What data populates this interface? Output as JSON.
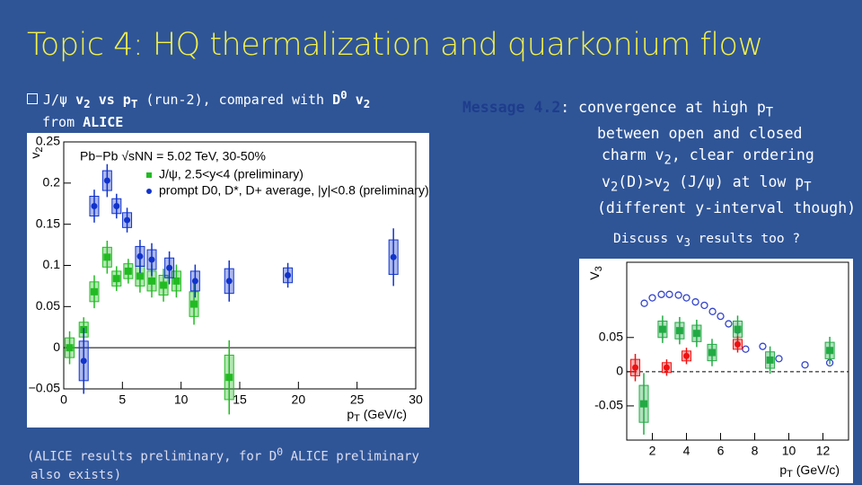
{
  "slide": {
    "title": "Topic 4: HQ thermalization and quarkonium flow",
    "bullet": [
      "J/ψ ",
      "v",
      "2",
      " vs p",
      "T",
      " (run-2), compared with ",
      "D",
      "0",
      " v",
      "2",
      "from ",
      "ALICE"
    ],
    "message": [
      "Message 4.2",
      ": convergence at high p",
      "T",
      "between open and closed",
      "charm v",
      "2",
      ", clear ordering",
      "v",
      "2",
      "(D)>v",
      "2",
      " (J/ψ) at low p",
      "T",
      "(different y-interval though)"
    ],
    "discuss": [
      "Discuss v",
      "3",
      " results too ?"
    ],
    "footnote": [
      "(ALICE results preliminary, for D",
      "0",
      " ALICE preliminary",
      "also exists)"
    ]
  },
  "chart_data": [
    {
      "type": "scatter",
      "annotation": "Pb−Pb √sNN = 5.02 TeV, 30-50%",
      "ylabel": [
        "v",
        "2"
      ],
      "xlabel": [
        "p",
        "T",
        " (GeV/c)"
      ],
      "xlim": [
        0,
        30
      ],
      "ylim": [
        -0.05,
        0.25
      ],
      "xticks": [
        0,
        5,
        10,
        15,
        20,
        25,
        30
      ],
      "yticks": [
        {
          "value": -0.05,
          "label": "−0.05"
        },
        0,
        0.05,
        0.1,
        0.15,
        0.2,
        0.25
      ],
      "series": [
        {
          "name": "J/ψ, 2.5<y<4 (preliminary)",
          "color": "#22bb22",
          "marker": "square",
          "x": [
            0.5,
            1.7,
            2.6,
            3.7,
            4.5,
            5.5,
            6.5,
            7.5,
            8.5,
            9.6,
            11.1,
            14.1
          ],
          "values": [
            0.0,
            0.022,
            0.068,
            0.11,
            0.084,
            0.093,
            0.087,
            0.081,
            0.076,
            0.081,
            0.053,
            -0.036
          ],
          "errors": [
            0.02,
            0.015,
            0.02,
            0.02,
            0.015,
            0.015,
            0.02,
            0.02,
            0.02,
            0.02,
            0.025,
            0.045
          ]
        },
        {
          "name": "prompt D0, D*, D+ average, |y|<0.8 (preliminary)",
          "color": "#1133cc",
          "marker": "circle",
          "x": [
            1.7,
            2.6,
            3.7,
            4.5,
            5.4,
            6.5,
            7.5,
            9.0,
            11.2,
            14.1,
            19.1,
            28.1
          ],
          "values": [
            -0.016,
            0.172,
            0.203,
            0.172,
            0.155,
            0.111,
            0.107,
            0.097,
            0.081,
            0.081,
            0.088,
            0.11
          ],
          "errors": [
            0.04,
            0.02,
            0.02,
            0.015,
            0.015,
            0.02,
            0.02,
            0.02,
            0.02,
            0.025,
            0.015,
            0.035
          ]
        }
      ]
    },
    {
      "type": "scatter",
      "ylabel": [
        "V",
        "3"
      ],
      "xlabel": [
        "p",
        "T",
        " (GeV/c)"
      ],
      "xlim": [
        0.5,
        13.5
      ],
      "ylim": [
        -0.1,
        0.16
      ],
      "xticks": [
        2,
        4,
        6,
        8,
        10,
        12
      ],
      "yticks": [
        -0.05,
        0,
        0.05
      ],
      "series": [
        {
          "color": "#3344cc",
          "marker": "open-circle",
          "x": [
            1.53,
            2.0,
            2.53,
            3.0,
            3.53,
            4.0,
            4.53,
            5.05,
            5.53,
            6.0,
            6.47,
            7.0,
            7.47,
            8.47,
            9.42,
            10.95,
            12.4
          ],
          "values": [
            0.1,
            0.108,
            0.113,
            0.113,
            0.112,
            0.108,
            0.102,
            0.097,
            0.088,
            0.081,
            0.07,
            0.061,
            0.033,
            0.037,
            0.019,
            0.01,
            0.013
          ]
        },
        {
          "color": "#22aa44",
          "marker": "square",
          "x": [
            1.5,
            2.6,
            3.6,
            4.6,
            5.5,
            7.0,
            8.9,
            12.4
          ],
          "values": [
            -0.047,
            0.062,
            0.06,
            0.056,
            0.028,
            0.062,
            0.017,
            0.031
          ],
          "errors": [
            0.045,
            0.02,
            0.02,
            0.02,
            0.02,
            0.02,
            0.02,
            0.02
          ]
        },
        {
          "color": "#ee1111",
          "marker": "circle",
          "x": [
            1.0,
            2.84,
            4.0,
            7.0
          ],
          "values": [
            0.006,
            0.006,
            0.023,
            0.04
          ],
          "errors": [
            0.02,
            0.012,
            0.012,
            0.012
          ]
        }
      ]
    }
  ]
}
